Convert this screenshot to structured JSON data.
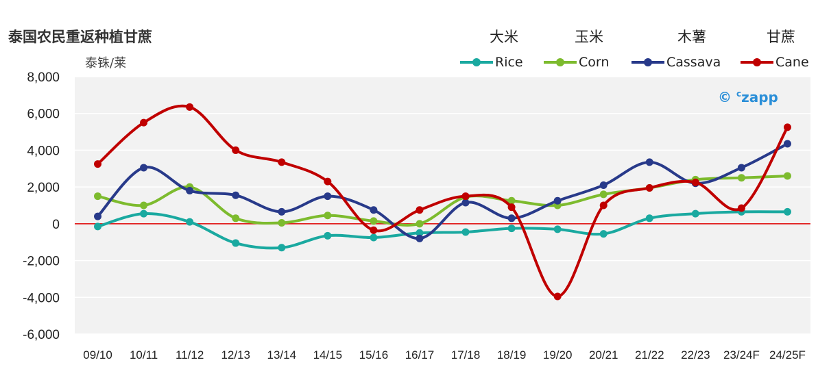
{
  "header": {
    "title": "泰国农民重返种植甘蔗",
    "y_unit": "泰铢/莱"
  },
  "brand": {
    "symbol": "©",
    "superscript": "c",
    "name": "zapp"
  },
  "colors": {
    "rice": "#1aa9a0",
    "corn": "#7dbb2e",
    "cassava": "#283a8a",
    "cane": "#c00000",
    "zero_line": "#e00000",
    "plot_bg": "#f2f2f2",
    "grid": "#ffffff",
    "brand": "#2b8fd8"
  },
  "legend": [
    {
      "cn": "大米",
      "en": "Rice",
      "color_key": "rice"
    },
    {
      "cn": "玉米",
      "en": "Corn",
      "color_key": "corn"
    },
    {
      "cn": "木薯",
      "en": "Cassava",
      "color_key": "cassava"
    },
    {
      "cn": "甘蔗",
      "en": "Cane",
      "color_key": "cane"
    }
  ],
  "chart_data": {
    "type": "line",
    "title": "泰国农民重返种植甘蔗",
    "xlabel": "",
    "ylabel": "泰铢/莱",
    "ylim": [
      -6000,
      8000
    ],
    "yticks": [
      -6000,
      -4000,
      -2000,
      0,
      2000,
      4000,
      6000,
      8000
    ],
    "ytick_labels": [
      "-6,000",
      "-4,000",
      "-2,000",
      "0",
      "2,000",
      "4,000",
      "6,000",
      "8,000"
    ],
    "categories": [
      "09/10",
      "10/11",
      "11/12",
      "12/13",
      "13/14",
      "14/15",
      "15/16",
      "16/17",
      "17/18",
      "18/19",
      "19/20",
      "20/21",
      "21/22",
      "22/23",
      "23/24F",
      "24/25F"
    ],
    "grid": true,
    "legend_position": "top-right",
    "series": [
      {
        "name": "Rice",
        "label_cn": "大米",
        "color_key": "rice",
        "values": [
          -150,
          550,
          100,
          -1050,
          -1300,
          -650,
          -750,
          -500,
          -450,
          -250,
          -300,
          -550,
          300,
          550,
          650,
          650
        ]
      },
      {
        "name": "Corn",
        "label_cn": "玉米",
        "color_key": "corn",
        "values": [
          1500,
          1000,
          2000,
          300,
          50,
          450,
          150,
          0,
          1450,
          1250,
          1000,
          1600,
          1950,
          2400,
          2500,
          2600
        ]
      },
      {
        "name": "Cassava",
        "label_cn": "木薯",
        "color_key": "cassava",
        "values": [
          400,
          3050,
          1800,
          1550,
          650,
          1500,
          750,
          -800,
          1150,
          300,
          1250,
          2100,
          3350,
          2200,
          3050,
          4350
        ]
      },
      {
        "name": "Cane",
        "label_cn": "甘蔗",
        "color_key": "cane",
        "values": [
          3250,
          5500,
          6350,
          4000,
          3350,
          2300,
          -350,
          750,
          1500,
          900,
          -3950,
          1000,
          1950,
          2250,
          850,
          5250
        ]
      }
    ]
  }
}
